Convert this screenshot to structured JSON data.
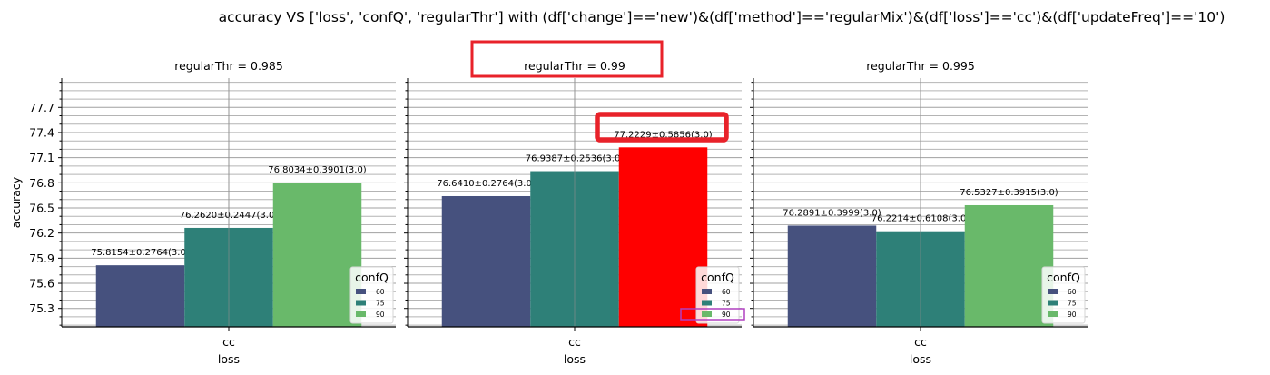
{
  "figure_title": "accuracy VS ['loss', 'confQ', 'regularThr'] with (df['change']=='new')&(df['method']=='regularMix')&(df['loss']=='cc')&(df['updateFreq']=='10')",
  "colors": {
    "c60": "#46517e",
    "c75": "#2e8078",
    "c90": "#69b96a",
    "highlight_bar": "#ff0000",
    "highlight_box": "#e8222a",
    "legend_box": "#b040c0",
    "grid_major": "#a0a0a0",
    "grid_minor": "#b4b4b4"
  },
  "chart_data": [
    {
      "type": "bar",
      "title": "regularThr = 0.985",
      "xlabel": "loss",
      "ylabel": "accuracy",
      "categories": [
        "cc"
      ],
      "ylim": [
        75.08,
        78.05
      ],
      "yticks": [
        75.3,
        75.6,
        75.9,
        76.2,
        76.5,
        76.8,
        77.1,
        77.4,
        77.7
      ],
      "ytick_labels": [
        "75.3",
        "75.6",
        "75.9",
        "76.2",
        "76.5",
        "76.8",
        "77.1",
        "77.4",
        "77.7"
      ],
      "grid": true,
      "legend": {
        "title": "confQ",
        "placement": "lower-right",
        "entries": [
          "60",
          "75",
          "90"
        ]
      },
      "series": [
        {
          "name": "60",
          "values": [
            75.8154
          ],
          "label": "75.8154±0.2764(3.0)"
        },
        {
          "name": "75",
          "values": [
            76.262
          ],
          "label": "76.2620±0.2447(3.0)"
        },
        {
          "name": "90",
          "values": [
            76.8034
          ],
          "label": "76.8034±0.3901(3.0)"
        }
      ]
    },
    {
      "type": "bar",
      "title": "regularThr = 0.99",
      "xlabel": "loss",
      "ylabel": "",
      "categories": [
        "cc"
      ],
      "ylim": [
        75.08,
        78.05
      ],
      "yticks": [
        75.3,
        75.6,
        75.9,
        76.2,
        76.5,
        76.8,
        77.1,
        77.4,
        77.7
      ],
      "ytick_labels": [],
      "grid": true,
      "legend": {
        "title": "confQ",
        "placement": "lower-right",
        "entries": [
          "60",
          "75",
          "90"
        ]
      },
      "series": [
        {
          "name": "60",
          "values": [
            76.641
          ],
          "label": "76.6410±0.2764(3.0)"
        },
        {
          "name": "75",
          "values": [
            76.9387
          ],
          "label": "76.9387±0.2536(3.0)"
        },
        {
          "name": "90",
          "values": [
            77.2229
          ],
          "label": "77.2229±0.5856(3.0)",
          "highlighted": true
        }
      ],
      "annotations": [
        "title-highlight-box",
        "top-label-highlight-box",
        "legend-entry-90-box"
      ]
    },
    {
      "type": "bar",
      "title": "regularThr = 0.995",
      "xlabel": "loss",
      "ylabel": "",
      "categories": [
        "cc"
      ],
      "ylim": [
        75.08,
        78.05
      ],
      "yticks": [
        75.3,
        75.6,
        75.9,
        76.2,
        76.5,
        76.8,
        77.1,
        77.4,
        77.7
      ],
      "ytick_labels": [],
      "grid": true,
      "legend": {
        "title": "confQ",
        "placement": "lower-right",
        "entries": [
          "60",
          "75",
          "90"
        ]
      },
      "series": [
        {
          "name": "60",
          "values": [
            76.2891
          ],
          "label": "76.2891±0.3999(3.0)"
        },
        {
          "name": "75",
          "values": [
            76.2214
          ],
          "label": "76.2214±0.6108(3.0)"
        },
        {
          "name": "90",
          "values": [
            76.5327
          ],
          "label": "76.5327±0.3915(3.0)"
        }
      ]
    }
  ]
}
